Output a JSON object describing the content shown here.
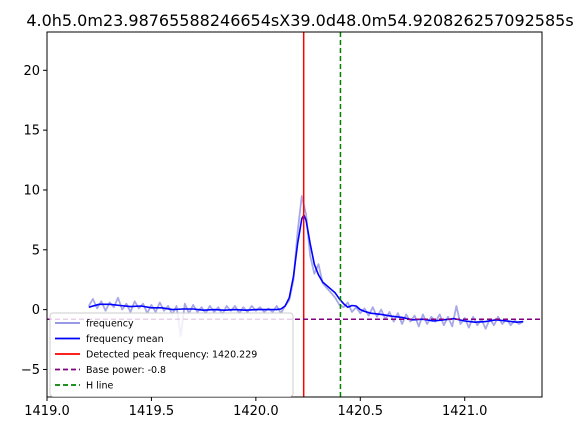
{
  "chart_data": {
    "type": "line",
    "title": "4.0h5.0m23.98765588246654sX39.0d48.0m54.920826257092585s",
    "xlim": [
      1419.0,
      1421.37
    ],
    "ylim": [
      -7.3,
      23.2
    ],
    "x_ticks": [
      "1419.0",
      "1419.5",
      "1420.0",
      "1420.5",
      "1421.0"
    ],
    "y_ticks": [
      "−5",
      "0",
      "5",
      "10",
      "15",
      "20"
    ],
    "grid": false,
    "legend_position": "lower-left",
    "series": [
      {
        "name": "frequency",
        "color": "#8c8ce0",
        "points": [
          [
            1419.2,
            0.3
          ],
          [
            1419.22,
            0.9
          ],
          [
            1419.24,
            0.1
          ],
          [
            1419.26,
            0.7
          ],
          [
            1419.28,
            -0.1
          ],
          [
            1419.3,
            0.6
          ],
          [
            1419.32,
            0.2
          ],
          [
            1419.34,
            1.0
          ],
          [
            1419.36,
            0.0
          ],
          [
            1419.38,
            0.5
          ],
          [
            1419.4,
            -0.2
          ],
          [
            1419.42,
            0.7
          ],
          [
            1419.44,
            0.1
          ],
          [
            1419.46,
            0.5
          ],
          [
            1419.48,
            -0.3
          ],
          [
            1419.5,
            0.4
          ],
          [
            1419.52,
            -0.2
          ],
          [
            1419.54,
            0.6
          ],
          [
            1419.56,
            -0.1
          ],
          [
            1419.58,
            0.3
          ],
          [
            1419.6,
            -0.4
          ],
          [
            1419.62,
            0.3
          ],
          [
            1419.64,
            -2.2
          ],
          [
            1419.66,
            0.5
          ],
          [
            1419.68,
            -0.3
          ],
          [
            1419.7,
            0.4
          ],
          [
            1419.72,
            -0.2
          ],
          [
            1419.74,
            0.2
          ],
          [
            1419.76,
            -0.3
          ],
          [
            1419.78,
            0.3
          ],
          [
            1419.8,
            -0.2
          ],
          [
            1419.82,
            0.2
          ],
          [
            1419.84,
            -0.4
          ],
          [
            1419.86,
            0.3
          ],
          [
            1419.88,
            -0.1
          ],
          [
            1419.9,
            0.3
          ],
          [
            1419.92,
            -0.3
          ],
          [
            1419.94,
            0.2
          ],
          [
            1419.96,
            -0.2
          ],
          [
            1419.98,
            0.3
          ],
          [
            1420.0,
            -0.1
          ],
          [
            1420.02,
            0.2
          ],
          [
            1420.04,
            -0.2
          ],
          [
            1420.06,
            0.1
          ],
          [
            1420.08,
            -0.2
          ],
          [
            1420.1,
            0.3
          ],
          [
            1420.12,
            -0.3
          ],
          [
            1420.14,
            0.3
          ],
          [
            1420.16,
            0.8
          ],
          [
            1420.18,
            2.5
          ],
          [
            1420.2,
            6.5
          ],
          [
            1420.22,
            9.5
          ],
          [
            1420.24,
            8.0
          ],
          [
            1420.26,
            4.5
          ],
          [
            1420.28,
            3.0
          ],
          [
            1420.3,
            3.8
          ],
          [
            1420.32,
            2.2
          ],
          [
            1420.34,
            1.8
          ],
          [
            1420.36,
            1.4
          ],
          [
            1420.38,
            1.0
          ],
          [
            1420.4,
            0.4
          ],
          [
            1420.42,
            0.2
          ],
          [
            1420.44,
            0.6
          ],
          [
            1420.46,
            -0.2
          ],
          [
            1420.48,
            0.2
          ],
          [
            1420.5,
            -0.3
          ],
          [
            1420.52,
            0.1
          ],
          [
            1420.54,
            -0.5
          ],
          [
            1420.56,
            0.2
          ],
          [
            1420.58,
            -0.6
          ],
          [
            1420.6,
            0.0
          ],
          [
            1420.62,
            -0.8
          ],
          [
            1420.64,
            -0.2
          ],
          [
            1420.66,
            -1.0
          ],
          [
            1420.68,
            -0.3
          ],
          [
            1420.7,
            -1.2
          ],
          [
            1420.72,
            -0.4
          ],
          [
            1420.74,
            -1.0
          ],
          [
            1420.76,
            -0.5
          ],
          [
            1420.78,
            -1.4
          ],
          [
            1420.8,
            -0.4
          ],
          [
            1420.82,
            -1.2
          ],
          [
            1420.84,
            -0.6
          ],
          [
            1420.86,
            -1.0
          ],
          [
            1420.88,
            -0.4
          ],
          [
            1420.9,
            -1.3
          ],
          [
            1420.92,
            -0.6
          ],
          [
            1420.94,
            -1.4
          ],
          [
            1420.96,
            0.3
          ],
          [
            1420.98,
            -1.2
          ],
          [
            1421.0,
            -0.7
          ],
          [
            1421.02,
            -1.5
          ],
          [
            1421.04,
            -0.6
          ],
          [
            1421.06,
            -1.3
          ],
          [
            1421.08,
            -0.8
          ],
          [
            1421.1,
            -1.6
          ],
          [
            1421.12,
            -0.8
          ],
          [
            1421.14,
            -1.3
          ],
          [
            1421.16,
            -0.6
          ],
          [
            1421.18,
            -1.2
          ],
          [
            1421.2,
            -0.8
          ],
          [
            1421.22,
            -1.3
          ],
          [
            1421.24,
            -0.9
          ],
          [
            1421.26,
            -1.2
          ],
          [
            1421.28,
            -1.0
          ]
        ]
      },
      {
        "name": "frequency mean",
        "color": "#0000ff",
        "points": [
          [
            1419.2,
            0.2
          ],
          [
            1419.25,
            0.45
          ],
          [
            1419.3,
            0.45
          ],
          [
            1419.35,
            0.35
          ],
          [
            1419.4,
            0.25
          ],
          [
            1419.45,
            0.3
          ],
          [
            1419.5,
            0.15
          ],
          [
            1419.55,
            0.15
          ],
          [
            1419.6,
            0.0
          ],
          [
            1419.65,
            0.05
          ],
          [
            1419.7,
            0.05
          ],
          [
            1419.75,
            -0.05
          ],
          [
            1419.8,
            0.0
          ],
          [
            1419.85,
            -0.05
          ],
          [
            1419.9,
            0.0
          ],
          [
            1419.95,
            -0.05
          ],
          [
            1420.0,
            0.0
          ],
          [
            1420.05,
            0.0
          ],
          [
            1420.1,
            0.0
          ],
          [
            1420.12,
            0.05
          ],
          [
            1420.14,
            0.3
          ],
          [
            1420.16,
            1.0
          ],
          [
            1420.18,
            2.8
          ],
          [
            1420.2,
            5.5
          ],
          [
            1420.22,
            7.6
          ],
          [
            1420.23,
            7.9
          ],
          [
            1420.24,
            7.5
          ],
          [
            1420.26,
            5.5
          ],
          [
            1420.28,
            3.8
          ],
          [
            1420.3,
            2.9
          ],
          [
            1420.32,
            2.3
          ],
          [
            1420.34,
            2.0
          ],
          [
            1420.36,
            1.7
          ],
          [
            1420.38,
            1.4
          ],
          [
            1420.4,
            0.9
          ],
          [
            1420.42,
            0.5
          ],
          [
            1420.44,
            0.2
          ],
          [
            1420.46,
            0.35
          ],
          [
            1420.48,
            0.3
          ],
          [
            1420.5,
            0.0
          ],
          [
            1420.52,
            -0.15
          ],
          [
            1420.55,
            -0.3
          ],
          [
            1420.6,
            -0.4
          ],
          [
            1420.65,
            -0.55
          ],
          [
            1420.7,
            -0.65
          ],
          [
            1420.75,
            -0.85
          ],
          [
            1420.8,
            -0.8
          ],
          [
            1420.85,
            -0.95
          ],
          [
            1420.9,
            -0.85
          ],
          [
            1420.95,
            -0.75
          ],
          [
            1421.0,
            -0.95
          ],
          [
            1421.05,
            -1.05
          ],
          [
            1421.1,
            -1.0
          ],
          [
            1421.15,
            -0.85
          ],
          [
            1421.2,
            -0.95
          ],
          [
            1421.25,
            -1.05
          ],
          [
            1421.28,
            -1.0
          ]
        ]
      }
    ],
    "vlines": [
      {
        "name": "Detected peak frequency: 1420.229",
        "x": 1420.229,
        "color": "#ff0000",
        "style": "solid"
      },
      {
        "name": "H line",
        "x": 1420.405,
        "color": "#008000",
        "style": "dashed"
      }
    ],
    "hlines": [
      {
        "name": "Base power: -0.8",
        "y": -0.8,
        "color": "#800080",
        "style": "dashed"
      }
    ],
    "legend": [
      {
        "label": "frequency",
        "color": "#8c8ce0",
        "style": "solid"
      },
      {
        "label": "frequency mean",
        "color": "#0000ff",
        "style": "solid"
      },
      {
        "label": "Detected peak frequency: 1420.229",
        "color": "#ff0000",
        "style": "solid"
      },
      {
        "label": "Base power: -0.8",
        "color": "#800080",
        "style": "dashed"
      },
      {
        "label": "H line",
        "color": "#008000",
        "style": "dashed"
      }
    ]
  }
}
